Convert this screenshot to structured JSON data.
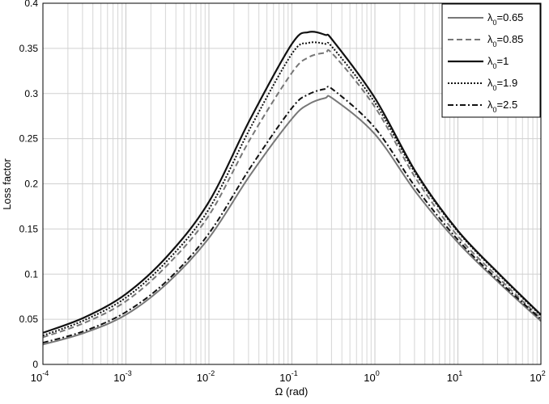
{
  "chart_data": {
    "type": "line",
    "title": "",
    "xlabel": "Ω (rad)",
    "ylabel": "Loss factor",
    "xscale": "log",
    "xlim": [
      0.0001,
      100
    ],
    "ylim": [
      0,
      0.4
    ],
    "grid": true,
    "legend_placement": "top-right",
    "xticks": [
      {
        "base": "10",
        "exp": "-4"
      },
      {
        "base": "10",
        "exp": "-3"
      },
      {
        "base": "10",
        "exp": "-2"
      },
      {
        "base": "10",
        "exp": "-1"
      },
      {
        "base": "10",
        "exp": "0"
      },
      {
        "base": "10",
        "exp": "1"
      },
      {
        "base": "10",
        "exp": "2"
      }
    ],
    "yticks": [
      "0",
      "0.05",
      "0.1",
      "0.15",
      "0.2",
      "0.25",
      "0.3",
      "0.35",
      "0.4"
    ],
    "x": [
      0.0001,
      0.000316,
      0.001,
      0.00316,
      0.01,
      0.0316,
      0.1,
      0.158,
      0.251,
      0.316,
      1,
      3.16,
      10,
      31.6,
      100
    ],
    "series": [
      {
        "name": "0.65",
        "label_prefix": "λ",
        "label_sub": "0",
        "color": "#777777",
        "dash": "",
        "width": 2,
        "values": [
          0.022,
          0.035,
          0.055,
          0.09,
          0.14,
          0.21,
          0.272,
          0.288,
          0.295,
          0.294,
          0.255,
          0.19,
          0.135,
          0.09,
          0.048
        ]
      },
      {
        "name": "0.85",
        "label_prefix": "λ",
        "label_sub": "0",
        "color": "#777777",
        "dash": "7,4",
        "width": 2,
        "values": [
          0.03,
          0.046,
          0.07,
          0.11,
          0.165,
          0.25,
          0.323,
          0.34,
          0.345,
          0.343,
          0.285,
          0.205,
          0.142,
          0.095,
          0.051
        ]
      },
      {
        "name": "1",
        "label_prefix": "λ",
        "label_sub": "0",
        "color": "#111111",
        "dash": "",
        "width": 2.2,
        "values": [
          0.035,
          0.052,
          0.078,
          0.12,
          0.18,
          0.272,
          0.355,
          0.368,
          0.365,
          0.358,
          0.295,
          0.212,
          0.148,
          0.1,
          0.055
        ]
      },
      {
        "name": "1.9",
        "label_prefix": "λ",
        "label_sub": "0",
        "color": "#111111",
        "dash": "2,2",
        "width": 2,
        "values": [
          0.032,
          0.049,
          0.074,
          0.115,
          0.172,
          0.262,
          0.344,
          0.356,
          0.355,
          0.35,
          0.29,
          0.21,
          0.147,
          0.099,
          0.054
        ]
      },
      {
        "name": "2.5",
        "label_prefix": "λ",
        "label_sub": "0",
        "color": "#111111",
        "dash": "7,3,2,3",
        "width": 2,
        "values": [
          0.024,
          0.037,
          0.058,
          0.093,
          0.145,
          0.218,
          0.284,
          0.299,
          0.305,
          0.304,
          0.262,
          0.195,
          0.138,
          0.092,
          0.05
        ]
      }
    ]
  }
}
